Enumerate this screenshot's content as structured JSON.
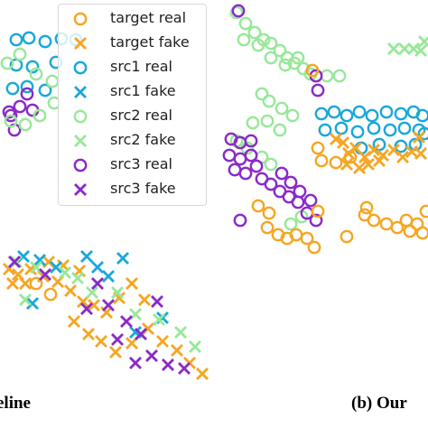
{
  "chart_data": [
    {
      "type": "scatter",
      "caption": "eline",
      "legend": {
        "placement": "top-left",
        "entries": [
          {
            "label": "target real",
            "color": "#f5a623",
            "marker": "o"
          },
          {
            "label": "target fake",
            "color": "#f5a623",
            "marker": "x"
          },
          {
            "label": "src1 real",
            "color": "#1aa8d9",
            "marker": "o"
          },
          {
            "label": "src1 fake",
            "color": "#1aa8d9",
            "marker": "x"
          },
          {
            "label": "src2 real",
            "color": "#98e89a",
            "marker": "o"
          },
          {
            "label": "src2 fake",
            "color": "#98e89a",
            "marker": "x"
          },
          {
            "label": "src3 real",
            "color": "#8a2bc7",
            "marker": "o"
          },
          {
            "label": "src3 fake",
            "color": "#8a2bc7",
            "marker": "x"
          }
        ]
      },
      "xlim": [
        0,
        230
      ],
      "ylim": [
        0,
        474
      ],
      "series": [
        {
          "group": "src1 real",
          "points": [
            [
              18,
              430
            ],
            [
              32,
              432
            ],
            [
              50,
              428
            ],
            [
              68,
              431
            ],
            [
              84,
              430
            ],
            [
              18,
              402
            ],
            [
              36,
              400
            ],
            [
              62,
              405
            ],
            [
              14,
              376
            ],
            [
              30,
              378
            ],
            [
              50,
              374
            ]
          ]
        },
        {
          "group": "src3 real",
          "points": [
            [
              10,
              350
            ],
            [
              22,
              356
            ],
            [
              36,
              352
            ],
            [
              30,
              370
            ],
            [
              16,
              330
            ],
            [
              12,
              346
            ]
          ]
        },
        {
          "group": "src2 real",
          "points": [
            [
              8,
              404
            ],
            [
              22,
              414
            ],
            [
              40,
              392
            ],
            [
              58,
              384
            ],
            [
              12,
              340
            ],
            [
              28,
              336
            ],
            [
              44,
              346
            ],
            [
              60,
              360
            ]
          ]
        },
        {
          "group": "target real",
          "points": [
            [
              56,
              148
            ],
            [
              40,
              160
            ]
          ]
        },
        {
          "group": "target fake",
          "points": [
            [
              20,
              170
            ],
            [
              34,
              176
            ],
            [
              48,
              168
            ],
            [
              64,
              162
            ],
            [
              78,
              152
            ],
            [
              92,
              140
            ],
            [
              104,
              136
            ],
            [
              118,
              128
            ],
            [
              132,
              144
            ],
            [
              146,
              160
            ],
            [
              160,
              142
            ],
            [
              82,
              118
            ],
            [
              98,
              104
            ],
            [
              112,
              96
            ],
            [
              128,
              84
            ],
            [
              146,
              94
            ],
            [
              164,
              110
            ],
            [
              180,
              96
            ],
            [
              196,
              86
            ],
            [
              210,
              72
            ],
            [
              224,
              60
            ],
            [
              14,
              160
            ],
            [
              10,
              176
            ],
            [
              28,
              160
            ],
            [
              54,
              184
            ],
            [
              70,
              180
            ],
            [
              88,
              174
            ]
          ]
        },
        {
          "group": "src1 fake",
          "points": [
            [
              26,
              190
            ],
            [
              44,
              186
            ],
            [
              62,
              178
            ],
            [
              96,
              190
            ],
            [
              108,
              178
            ],
            [
              120,
              168
            ],
            [
              36,
              138
            ],
            [
              136,
              188
            ],
            [
              150,
              106
            ],
            [
              180,
              122
            ]
          ]
        },
        {
          "group": "src2 fake",
          "points": [
            [
              18,
              184
            ],
            [
              40,
              178
            ],
            [
              72,
              172
            ],
            [
              86,
              166
            ],
            [
              130,
              150
            ],
            [
              150,
              126
            ],
            [
              176,
              120
            ],
            [
              200,
              106
            ],
            [
              216,
              90
            ],
            [
              28,
              142
            ],
            [
              102,
              150
            ]
          ]
        },
        {
          "group": "src3 fake",
          "points": [
            [
              16,
              184
            ],
            [
              50,
              170
            ],
            [
              108,
              160
            ],
            [
              120,
              136
            ],
            [
              140,
              118
            ],
            [
              156,
              104
            ],
            [
              168,
              80
            ],
            [
              186,
              70
            ],
            [
              150,
              72
            ],
            [
              130,
              98
            ],
            [
              204,
              66
            ],
            [
              174,
              140
            ],
            [
              96,
              132
            ]
          ]
        }
      ]
    },
    {
      "type": "scatter",
      "caption": "(b) Our",
      "xlim": [
        240,
        474
      ],
      "ylim": [
        0,
        474
      ],
      "series": [
        {
          "group": "src2 real",
          "points": [
            [
              262,
              460
            ],
            [
              272,
              448
            ],
            [
              282,
              438
            ],
            [
              292,
              430
            ],
            [
              300,
              426
            ],
            [
              310,
              418
            ],
            [
              318,
              410
            ],
            [
              326,
              404
            ],
            [
              336,
              398
            ],
            [
              344,
              392
            ],
            [
              362,
              390
            ],
            [
              376,
              390
            ],
            [
              270,
              430
            ],
            [
              286,
              424
            ],
            [
              300,
              410
            ],
            [
              316,
              402
            ],
            [
              330,
              410
            ],
            [
              290,
              370
            ],
            [
              298,
              362
            ],
            [
              312,
              354
            ],
            [
              324,
              346
            ],
            [
              280,
              338
            ],
            [
              296,
              340
            ],
            [
              310,
              330
            ],
            [
              262,
              318
            ],
            [
              274,
              310
            ],
            [
              290,
              300
            ],
            [
              300,
              292
            ],
            [
              322,
              226
            ],
            [
              334,
              234
            ]
          ]
        },
        {
          "group": "src1 real",
          "points": [
            [
              356,
              348
            ],
            [
              370,
              350
            ],
            [
              384,
              346
            ],
            [
              398,
              350
            ],
            [
              412,
              346
            ],
            [
              428,
              350
            ],
            [
              444,
              348
            ],
            [
              458,
              350
            ],
            [
              468,
              346
            ],
            [
              360,
              330
            ],
            [
              378,
              332
            ],
            [
              396,
              328
            ],
            [
              414,
              332
            ],
            [
              432,
              330
            ],
            [
              448,
              332
            ],
            [
              464,
              330
            ],
            [
              400,
              310
            ],
            [
              420,
              314
            ],
            [
              444,
              312
            ],
            [
              460,
              314
            ],
            [
              470,
              326
            ]
          ]
        },
        {
          "group": "src3 real",
          "points": [
            [
              264,
              462
            ],
            [
              256,
              320
            ],
            [
              266,
              316
            ],
            [
              278,
              318
            ],
            [
              254,
              302
            ],
            [
              266,
              298
            ],
            [
              278,
              302
            ],
            [
              260,
              286
            ],
            [
              272,
              282
            ],
            [
              284,
              290
            ],
            [
              290,
              276
            ],
            [
              300,
              270
            ],
            [
              310,
              262
            ],
            [
              320,
              256
            ],
            [
              330,
              250
            ],
            [
              340,
              238
            ],
            [
              350,
              230
            ],
            [
              312,
              282
            ],
            [
              322,
              272
            ],
            [
              332,
              262
            ],
            [
              344,
              252
            ],
            [
              350,
              390
            ],
            [
              352,
              374
            ],
            [
              266,
              230
            ]
          ]
        },
        {
          "group": "target real",
          "points": [
            [
              346,
              396
            ],
            [
              352,
              310
            ],
            [
              356,
              296
            ],
            [
              372,
              294
            ],
            [
              388,
              300
            ],
            [
              286,
              246
            ],
            [
              298,
              238
            ],
            [
              296,
              222
            ],
            [
              308,
              214
            ],
            [
              318,
              210
            ],
            [
              328,
              214
            ],
            [
              340,
              210
            ],
            [
              348,
              200
            ],
            [
              352,
              240
            ],
            [
              406,
              244
            ],
            [
              404,
              236
            ],
            [
              414,
              230
            ],
            [
              428,
              226
            ],
            [
              440,
              222
            ],
            [
              454,
              218
            ],
            [
              468,
              216
            ],
            [
              450,
              230
            ],
            [
              462,
              226
            ],
            [
              472,
              240
            ],
            [
              384,
              212
            ]
          ]
        },
        {
          "group": "target fake",
          "points": [
            [
              380,
              316
            ],
            [
              386,
              304
            ],
            [
              394,
              310
            ],
            [
              404,
              300
            ],
            [
              414,
              308
            ],
            [
              424,
              302
            ],
            [
              436,
              308
            ],
            [
              446,
              300
            ],
            [
              456,
              306
            ],
            [
              466,
              304
            ],
            [
              398,
              288
            ],
            [
              408,
              292
            ],
            [
              420,
              296
            ],
            [
              384,
              292
            ],
            [
              372,
              320
            ],
            [
              464,
              322
            ]
          ]
        },
        {
          "group": "src2 fake",
          "points": [
            [
              436,
              420
            ],
            [
              448,
              420
            ],
            [
              458,
              420
            ],
            [
              466,
              418
            ],
            [
              470,
              428
            ]
          ]
        }
      ]
    }
  ]
}
